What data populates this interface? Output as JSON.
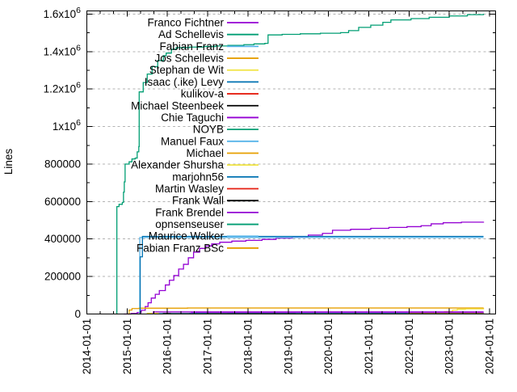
{
  "chart_data": {
    "type": "line",
    "title": "",
    "xlabel": "",
    "ylabel": "Lines",
    "grid": "horizontal-dashed",
    "legend_position": "top-left-inside",
    "xlim": [
      2014.0,
      2024.15
    ],
    "ylim": [
      0,
      1617000
    ],
    "x_ticks": [
      {
        "v": 2014,
        "label": "2014-01-01"
      },
      {
        "v": 2015,
        "label": "2015-01-01"
      },
      {
        "v": 2016,
        "label": "2016-01-01"
      },
      {
        "v": 2017,
        "label": "2017-01-01"
      },
      {
        "v": 2018,
        "label": "2018-01-01"
      },
      {
        "v": 2019,
        "label": "2019-01-01"
      },
      {
        "v": 2020,
        "label": "2020-01-01"
      },
      {
        "v": 2021,
        "label": "2021-01-01"
      },
      {
        "v": 2022,
        "label": "2022-01-01"
      },
      {
        "v": 2023,
        "label": "2023-01-01"
      },
      {
        "v": 2024,
        "label": "2024-01-01"
      }
    ],
    "y_ticks": [
      {
        "v": 0,
        "label": "0",
        "sup": null
      },
      {
        "v": 200000,
        "label": "200000",
        "sup": null
      },
      {
        "v": 400000,
        "label": "400000",
        "sup": null
      },
      {
        "v": 600000,
        "label": "600000",
        "sup": null
      },
      {
        "v": 800000,
        "label": "800000",
        "sup": null
      },
      {
        "v": 1000000,
        "label": "1x10",
        "sup": "6"
      },
      {
        "v": 1200000,
        "label": "1.2x10",
        "sup": "6"
      },
      {
        "v": 1400000,
        "label": "1.4x10",
        "sup": "6"
      },
      {
        "v": 1600000,
        "label": "1.6x10",
        "sup": "6"
      }
    ],
    "colors": {
      "grid": "#b3b3b3",
      "axis": "#000000",
      "palette_note": "gnuplot default cycle",
      "c1": "#9400D3",
      "c2": "#009E73",
      "c3": "#56B4E9",
      "c4": "#E69F00",
      "c5": "#F0E442",
      "c6": "#0072B2",
      "c7": "#E51E10",
      "c8": "#000000"
    },
    "series": [
      {
        "name": "Franco Fichtner",
        "color": "#9400D3",
        "points": [
          [
            2014.92,
            0
          ],
          [
            2015.1,
            3000
          ],
          [
            2015.25,
            8000
          ],
          [
            2015.35,
            20000
          ],
          [
            2015.45,
            40000
          ],
          [
            2015.52,
            60000
          ],
          [
            2015.6,
            85000
          ],
          [
            2015.7,
            105000
          ],
          [
            2015.8,
            125000
          ],
          [
            2015.95,
            155000
          ],
          [
            2016.05,
            180000
          ],
          [
            2016.16,
            205000
          ],
          [
            2016.28,
            240000
          ],
          [
            2016.4,
            265000
          ],
          [
            2016.52,
            300000
          ],
          [
            2016.65,
            330000
          ],
          [
            2016.8,
            350000
          ],
          [
            2016.95,
            363000
          ],
          [
            2017.1,
            374000
          ],
          [
            2017.3,
            383000
          ],
          [
            2017.6,
            389000
          ],
          [
            2017.95,
            393000
          ],
          [
            2018.35,
            398000
          ],
          [
            2018.7,
            405000
          ],
          [
            2019.1,
            413000
          ],
          [
            2019.5,
            421000
          ],
          [
            2019.85,
            430000
          ],
          [
            2020.1,
            447000
          ],
          [
            2020.55,
            452000
          ],
          [
            2021.05,
            457000
          ],
          [
            2021.5,
            462000
          ],
          [
            2021.95,
            466000
          ],
          [
            2022.3,
            471000
          ],
          [
            2022.55,
            481000
          ],
          [
            2022.85,
            487000
          ],
          [
            2023.3,
            490000
          ],
          [
            2023.85,
            492000
          ]
        ]
      },
      {
        "name": "Ad Schellevis",
        "color": "#009E73",
        "points": [
          [
            2014.74,
            0
          ],
          [
            2014.745,
            573000
          ],
          [
            2014.8,
            585000
          ],
          [
            2014.88,
            595000
          ],
          [
            2014.91,
            650000
          ],
          [
            2014.93,
            705000
          ],
          [
            2014.95,
            800000
          ],
          [
            2015.05,
            812000
          ],
          [
            2015.12,
            827000
          ],
          [
            2015.2,
            832000
          ],
          [
            2015.25,
            865000
          ],
          [
            2015.29,
            893000
          ],
          [
            2015.3,
            1185000
          ],
          [
            2015.4,
            1235000
          ],
          [
            2015.5,
            1280000
          ],
          [
            2015.62,
            1320000
          ],
          [
            2015.76,
            1352000
          ],
          [
            2015.9,
            1378000
          ],
          [
            2015.97,
            1392000
          ],
          [
            2016.1,
            1412000
          ],
          [
            2016.22,
            1421000
          ],
          [
            2016.55,
            1424000
          ],
          [
            2016.9,
            1427000
          ],
          [
            2017.2,
            1430000
          ],
          [
            2017.5,
            1433000
          ],
          [
            2017.9,
            1437000
          ],
          [
            2018.15,
            1441000
          ],
          [
            2018.42,
            1444000
          ],
          [
            2018.5,
            1489000
          ],
          [
            2018.85,
            1492000
          ],
          [
            2019.3,
            1495000
          ],
          [
            2019.8,
            1498000
          ],
          [
            2020.3,
            1501000
          ],
          [
            2020.5,
            1512000
          ],
          [
            2020.75,
            1529000
          ],
          [
            2021.05,
            1541000
          ],
          [
            2021.35,
            1556000
          ],
          [
            2021.55,
            1569000
          ],
          [
            2022.05,
            1576000
          ],
          [
            2022.5,
            1583000
          ],
          [
            2023.0,
            1590000
          ],
          [
            2023.45,
            1597000
          ],
          [
            2023.85,
            1602000
          ]
        ]
      },
      {
        "name": "Fabian Franz",
        "color": "#56B4E9",
        "points": [
          [
            2015.31,
            0
          ],
          [
            2015.315,
            408000
          ],
          [
            2023.85,
            408000
          ]
        ]
      },
      {
        "name": "Jos Schellevis",
        "color": "#E69F00",
        "points": [
          [
            2015.0,
            0
          ],
          [
            2015.05,
            21000
          ],
          [
            2015.12,
            29000
          ],
          [
            2015.3,
            31000
          ],
          [
            2016.5,
            32000
          ],
          [
            2023.85,
            33000
          ]
        ]
      },
      {
        "name": "Stephan de Wit",
        "color": "#F0E442",
        "points": [
          [
            2015.5,
            0
          ],
          [
            2015.5,
            4000
          ],
          [
            2022.78,
            4000
          ],
          [
            2022.88,
            13000
          ],
          [
            2023.08,
            21000
          ],
          [
            2023.2,
            25000
          ],
          [
            2023.4,
            27500
          ],
          [
            2023.85,
            28000
          ]
        ]
      },
      {
        "name": "Isaac (.ike) Levy",
        "color": "#0072B2",
        "points": [
          [
            2015.32,
            0
          ],
          [
            2015.325,
            305000
          ],
          [
            2015.38,
            414000
          ],
          [
            2023.85,
            414000
          ]
        ]
      },
      {
        "name": "kulikov-a",
        "color": "#E51E10",
        "points": [
          [
            2020.5,
            0
          ],
          [
            2020.5,
            2500
          ],
          [
            2023.85,
            3500
          ]
        ]
      },
      {
        "name": "Michael Steenbeek",
        "color": "#000000",
        "points": [
          [
            2017.5,
            0
          ],
          [
            2017.5,
            2000
          ],
          [
            2023.85,
            3000
          ]
        ]
      },
      {
        "name": "Chie Taguchi",
        "color": "#9400D3",
        "points": [
          [
            2015.65,
            0
          ],
          [
            2015.65,
            11000
          ],
          [
            2023.85,
            11500
          ]
        ]
      },
      {
        "name": "NOYB",
        "color": "#009E73",
        "points": [
          [
            2016.3,
            0
          ],
          [
            2016.3,
            1500
          ],
          [
            2023.85,
            2000
          ]
        ]
      },
      {
        "name": "Manuel Faux",
        "color": "#56B4E9",
        "points": [
          [
            2015.8,
            0
          ],
          [
            2015.8,
            3000
          ],
          [
            2023.85,
            3000
          ]
        ]
      },
      {
        "name": "Michael",
        "color": "#E69F00",
        "points": [
          [
            2016.9,
            0
          ],
          [
            2016.9,
            1200
          ],
          [
            2023.85,
            1500
          ]
        ]
      },
      {
        "name": "Alexander Shursha",
        "color": "#F0E442",
        "points": [
          [
            2017.8,
            0
          ],
          [
            2017.8,
            1000
          ],
          [
            2023.85,
            1200
          ]
        ]
      },
      {
        "name": "marjohn56",
        "color": "#0072B2",
        "points": [
          [
            2016.55,
            0
          ],
          [
            2016.55,
            2800
          ],
          [
            2017.5,
            3200
          ],
          [
            2023.85,
            3800
          ]
        ]
      },
      {
        "name": "Martin Wasley",
        "color": "#E51E10",
        "points": [
          [
            2017.0,
            0
          ],
          [
            2017.0,
            2200
          ],
          [
            2023.85,
            2600
          ]
        ]
      },
      {
        "name": "Frank Wall",
        "color": "#000000",
        "points": [
          [
            2015.9,
            0
          ],
          [
            2015.9,
            1500
          ],
          [
            2023.85,
            1800
          ]
        ]
      },
      {
        "name": "Frank Brendel",
        "color": "#9400D3",
        "points": [
          [
            2016.6,
            0
          ],
          [
            2016.6,
            9000
          ],
          [
            2023.85,
            9000
          ]
        ]
      },
      {
        "name": "opnsenseuser",
        "color": "#009E73",
        "points": [
          [
            2019.2,
            0
          ],
          [
            2019.2,
            1000
          ],
          [
            2023.85,
            1300
          ]
        ]
      },
      {
        "name": "Maurice Walker",
        "color": "#56B4E9",
        "points": [
          [
            2016.1,
            0
          ],
          [
            2016.1,
            600
          ],
          [
            2023.85,
            800
          ]
        ]
      },
      {
        "name": "Fabian Franz BSc",
        "color": "#E69F00",
        "points": [
          [
            2022.0,
            0
          ],
          [
            2022.0,
            1500
          ],
          [
            2023.85,
            1800
          ]
        ]
      }
    ]
  },
  "layout_labels": {
    "ylabel": "Lines"
  }
}
